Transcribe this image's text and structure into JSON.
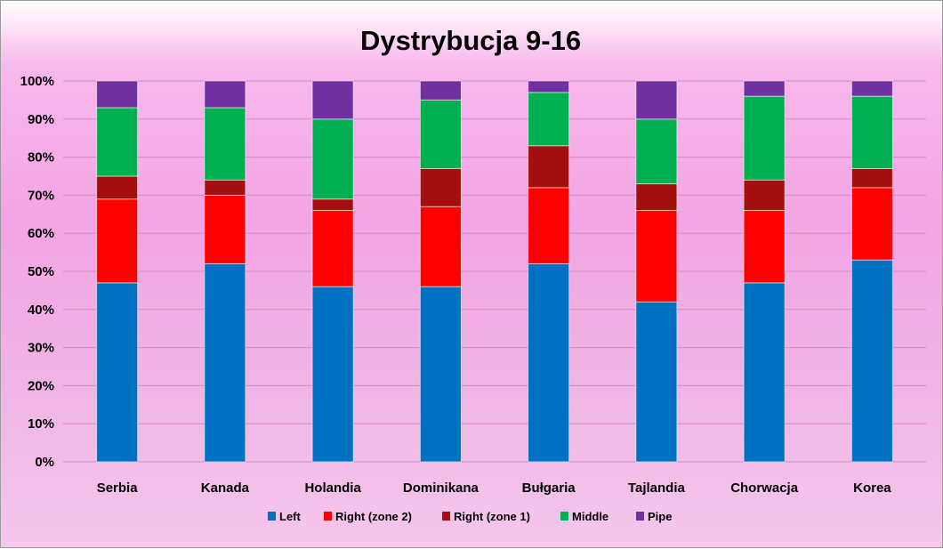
{
  "chart_data": {
    "type": "bar",
    "stacked": true,
    "title": "Dystrybucja 9-16",
    "xlabel": "",
    "ylabel": "",
    "ylim": [
      0,
      1
    ],
    "yticks": [
      "0%",
      "10%",
      "20%",
      "30%",
      "40%",
      "50%",
      "60%",
      "70%",
      "80%",
      "90%",
      "100%"
    ],
    "grid": true,
    "legend_position": "bottom",
    "categories": [
      "Serbia",
      "Kanada",
      "Holandia",
      "Dominikana",
      "Bułgaria",
      "Tajlandia",
      "Chorwacja",
      "Korea"
    ],
    "series": [
      {
        "name": "Left",
        "color": "#0070c0",
        "values": [
          0.47,
          0.52,
          0.46,
          0.46,
          0.52,
          0.42,
          0.47,
          0.53
        ]
      },
      {
        "name": "Right (zone 2)",
        "color": "#ff0000",
        "values": [
          0.22,
          0.18,
          0.2,
          0.21,
          0.2,
          0.24,
          0.19,
          0.19
        ]
      },
      {
        "name": "Right (zone 1)",
        "color": "#a50e0e",
        "values": [
          0.06,
          0.04,
          0.03,
          0.1,
          0.11,
          0.07,
          0.08,
          0.05
        ]
      },
      {
        "name": "Middle",
        "color": "#00b050",
        "values": [
          0.18,
          0.19,
          0.21,
          0.18,
          0.14,
          0.17,
          0.22,
          0.19
        ]
      },
      {
        "name": "Pipe",
        "color": "#7030a0",
        "values": [
          0.07,
          0.07,
          0.1,
          0.05,
          0.03,
          0.1,
          0.04,
          0.04
        ]
      }
    ]
  }
}
